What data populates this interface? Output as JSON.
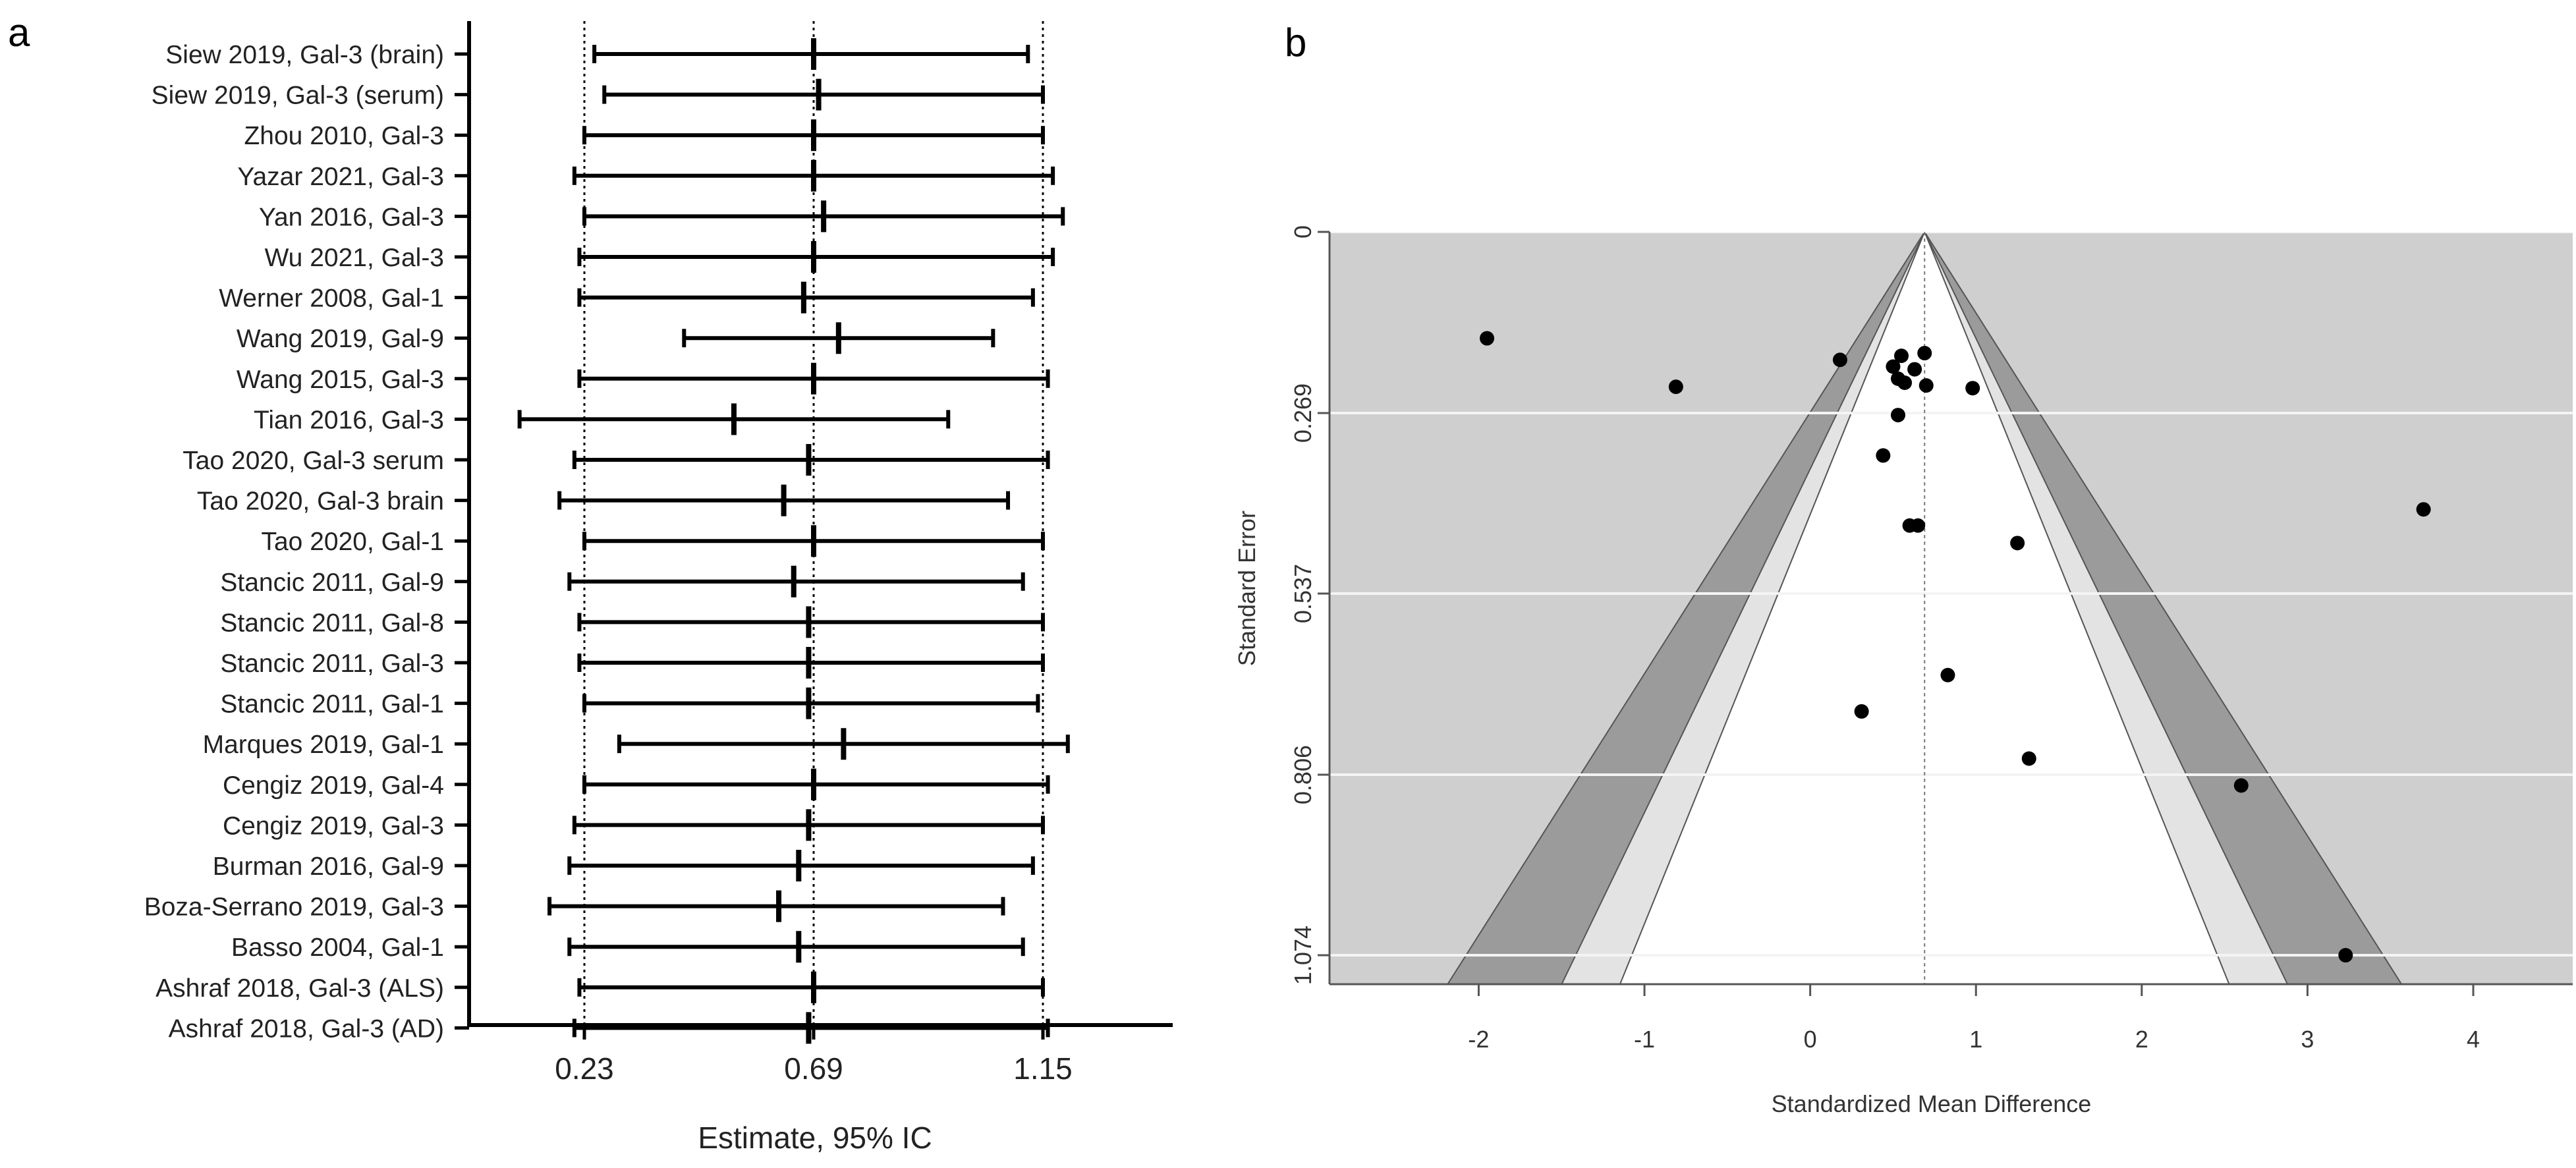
{
  "panels": {
    "a_letter": "a",
    "b_letter": "b"
  },
  "chart_data": [
    {
      "type": "forest",
      "panel": "a",
      "xlabel": "Estimate, 95% IC",
      "ticks": [
        "0.23",
        "0.69",
        "1.15"
      ],
      "tick_values": [
        0.23,
        0.69,
        1.15
      ],
      "reference_lines": [
        0.23,
        0.69,
        1.15
      ],
      "xlim": [
        0.0,
        1.4
      ],
      "studies": [
        {
          "label": "Siew 2019, Gal-3 (brain)",
          "est": 0.69,
          "lo": 0.25,
          "hi": 1.12
        },
        {
          "label": "Siew 2019, Gal-3 (serum)",
          "est": 0.7,
          "lo": 0.27,
          "hi": 1.15
        },
        {
          "label": "Zhou 2010, Gal-3",
          "est": 0.69,
          "lo": 0.23,
          "hi": 1.15
        },
        {
          "label": "Yazar 2021, Gal-3",
          "est": 0.69,
          "lo": 0.21,
          "hi": 1.17
        },
        {
          "label": "Yan 2016, Gal-3",
          "est": 0.71,
          "lo": 0.23,
          "hi": 1.19
        },
        {
          "label": "Wu 2021, Gal-3",
          "est": 0.69,
          "lo": 0.22,
          "hi": 1.17
        },
        {
          "label": "Werner 2008, Gal-1",
          "est": 0.67,
          "lo": 0.22,
          "hi": 1.13
        },
        {
          "label": "Wang 2019, Gal-9",
          "est": 0.74,
          "lo": 0.43,
          "hi": 1.05
        },
        {
          "label": "Wang 2015, Gal-3",
          "est": 0.69,
          "lo": 0.22,
          "hi": 1.16
        },
        {
          "label": "Tian 2016, Gal-3",
          "est": 0.53,
          "lo": 0.1,
          "hi": 0.96
        },
        {
          "label": "Tao 2020, Gal-3 serum",
          "est": 0.68,
          "lo": 0.21,
          "hi": 1.16
        },
        {
          "label": "Tao 2020, Gal-3 brain",
          "est": 0.63,
          "lo": 0.18,
          "hi": 1.08
        },
        {
          "label": "Tao 2020, Gal-1",
          "est": 0.69,
          "lo": 0.23,
          "hi": 1.15
        },
        {
          "label": "Stancic 2011, Gal-9",
          "est": 0.65,
          "lo": 0.2,
          "hi": 1.11
        },
        {
          "label": "Stancic 2011, Gal-8",
          "est": 0.68,
          "lo": 0.22,
          "hi": 1.15
        },
        {
          "label": "Stancic 2011, Gal-3",
          "est": 0.68,
          "lo": 0.22,
          "hi": 1.15
        },
        {
          "label": "Stancic 2011, Gal-1",
          "est": 0.68,
          "lo": 0.23,
          "hi": 1.14
        },
        {
          "label": "Marques 2019, Gal-1",
          "est": 0.75,
          "lo": 0.3,
          "hi": 1.2
        },
        {
          "label": "Cengiz 2019, Gal-4",
          "est": 0.69,
          "lo": 0.23,
          "hi": 1.16
        },
        {
          "label": "Cengiz 2019, Gal-3",
          "est": 0.68,
          "lo": 0.21,
          "hi": 1.15
        },
        {
          "label": "Burman 2016, Gal-9",
          "est": 0.66,
          "lo": 0.2,
          "hi": 1.13
        },
        {
          "label": "Boza-Serrano 2019, Gal-3",
          "est": 0.62,
          "lo": 0.16,
          "hi": 1.07
        },
        {
          "label": "Basso 2004, Gal-1",
          "est": 0.66,
          "lo": 0.2,
          "hi": 1.11
        },
        {
          "label": "Ashraf 2018, Gal-3 (ALS)",
          "est": 0.69,
          "lo": 0.22,
          "hi": 1.15
        },
        {
          "label": "Ashraf 2018, Gal-3 (AD)",
          "est": 0.68,
          "lo": 0.21,
          "hi": 1.16
        }
      ]
    },
    {
      "type": "scatter",
      "subtype": "funnel",
      "panel": "b",
      "xlabel": "Standardized Mean Difference",
      "ylabel": "Standard Error",
      "xlim": [
        -2.9,
        4.6
      ],
      "ylim": [
        0,
        1.117
      ],
      "y_inverted": true,
      "xticks": [
        -2,
        -1,
        0,
        1,
        2,
        3,
        4
      ],
      "xtick_labels": [
        "-2",
        "-1",
        "0",
        "1",
        "2",
        "3",
        "4"
      ],
      "yticks": [
        0,
        0.269,
        0.537,
        0.806,
        1.074
      ],
      "ytick_labels": [
        "0",
        "0.269",
        "0.537",
        "0.806",
        "1.074"
      ],
      "center": 0.69,
      "contour_levels": {
        "inner_z": 1.645,
        "middle_z": 1.96,
        "outer_z": 2.576
      },
      "colors": {
        "panel_bg": "#cfcfcf",
        "band_90_95": "#e3e3e3",
        "band_95_99": "#9b9b9b",
        "inner": "#ffffff",
        "grid": "#f4f4f4",
        "points": "#000000"
      },
      "points": [
        {
          "x": -1.95,
          "y": 0.158
        },
        {
          "x": 0.18,
          "y": 0.19
        },
        {
          "x": -0.81,
          "y": 0.23
        },
        {
          "x": 0.5,
          "y": 0.2
        },
        {
          "x": 0.55,
          "y": 0.184
        },
        {
          "x": 0.69,
          "y": 0.18
        },
        {
          "x": 0.63,
          "y": 0.204
        },
        {
          "x": 0.53,
          "y": 0.218
        },
        {
          "x": 0.57,
          "y": 0.224
        },
        {
          "x": 0.7,
          "y": 0.228
        },
        {
          "x": 0.98,
          "y": 0.232
        },
        {
          "x": 0.53,
          "y": 0.272
        },
        {
          "x": 0.44,
          "y": 0.332
        },
        {
          "x": 0.6,
          "y": 0.436
        },
        {
          "x": 0.65,
          "y": 0.436
        },
        {
          "x": 3.7,
          "y": 0.412
        },
        {
          "x": 1.25,
          "y": 0.462
        },
        {
          "x": 0.83,
          "y": 0.658
        },
        {
          "x": 0.31,
          "y": 0.712
        },
        {
          "x": 1.32,
          "y": 0.782
        },
        {
          "x": 2.6,
          "y": 0.822
        },
        {
          "x": 3.23,
          "y": 1.074
        }
      ]
    }
  ]
}
